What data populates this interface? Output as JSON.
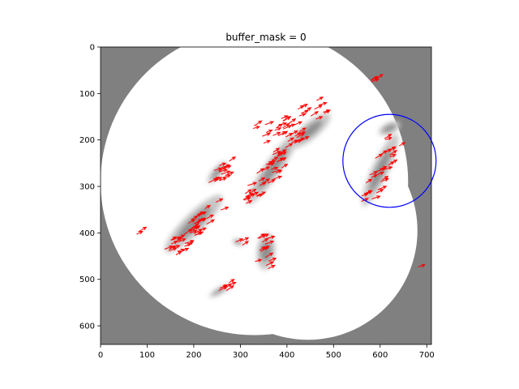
{
  "chart_data": {
    "type": "image",
    "title": "buffer_mask = 0",
    "xlabel": "",
    "ylabel": "",
    "xlim": [
      0,
      710
    ],
    "ylim": [
      640,
      0
    ],
    "x_ticks": [
      "0",
      "100",
      "200",
      "300",
      "400",
      "500",
      "600",
      "700"
    ],
    "y_ticks": [
      "0",
      "100",
      "200",
      "300",
      "400",
      "500",
      "600"
    ],
    "x_tick_values": [
      0,
      100,
      200,
      300,
      400,
      500,
      600,
      700
    ],
    "y_tick_values": [
      0,
      100,
      200,
      300,
      400,
      500,
      600
    ],
    "background_color": "#808080",
    "mask_color": "#ffffff",
    "arrow_color": "#ff0000",
    "circle_color": "#0000ff",
    "radar_domains": [
      {
        "cx": 330,
        "cy": 290,
        "r": 330
      },
      {
        "cx": 445,
        "cy": 395,
        "r": 235
      }
    ],
    "highlight_circle": {
      "cx": 620,
      "cy": 245,
      "r": 100
    },
    "echo_cells": [
      {
        "cx": 200,
        "cy": 380,
        "rx": 85,
        "ry": 22,
        "angle": -45
      },
      {
        "cx": 250,
        "cy": 270,
        "rx": 30,
        "ry": 10,
        "angle": -50
      },
      {
        "cx": 370,
        "cy": 260,
        "rx": 95,
        "ry": 18,
        "angle": -55
      },
      {
        "cx": 450,
        "cy": 180,
        "rx": 55,
        "ry": 18,
        "angle": -40
      },
      {
        "cx": 355,
        "cy": 440,
        "rx": 20,
        "ry": 40,
        "angle": 5
      },
      {
        "cx": 600,
        "cy": 265,
        "rx": 85,
        "ry": 18,
        "angle": -65
      },
      {
        "cx": 255,
        "cy": 525,
        "rx": 25,
        "ry": 7,
        "angle": -30
      },
      {
        "cx": 295,
        "cy": 420,
        "rx": 12,
        "ry": 7,
        "angle": 20
      },
      {
        "cx": 620,
        "cy": 175,
        "rx": 25,
        "ry": 12,
        "angle": -25
      }
    ],
    "motion_vector": {
      "dx": 15,
      "dy": -7
    },
    "arrow_groups": [
      {
        "cx": 200,
        "cy": 390,
        "rx": 80,
        "ry": 18,
        "angle": -45,
        "count": 40
      },
      {
        "cx": 255,
        "cy": 270,
        "rx": 35,
        "ry": 14,
        "angle": -50,
        "count": 14
      },
      {
        "cx": 370,
        "cy": 255,
        "rx": 100,
        "ry": 20,
        "angle": -55,
        "count": 45
      },
      {
        "cx": 410,
        "cy": 160,
        "rx": 75,
        "ry": 18,
        "angle": -25,
        "count": 30
      },
      {
        "cx": 350,
        "cy": 440,
        "rx": 18,
        "ry": 40,
        "angle": 5,
        "count": 14
      },
      {
        "cx": 595,
        "cy": 270,
        "rx": 75,
        "ry": 18,
        "angle": -65,
        "count": 28
      },
      {
        "cx": 255,
        "cy": 525,
        "rx": 28,
        "ry": 8,
        "angle": -30,
        "count": 7
      },
      {
        "cx": 295,
        "cy": 420,
        "rx": 12,
        "ry": 6,
        "angle": 20,
        "count": 3
      },
      {
        "cx": 590,
        "cy": 72,
        "rx": 18,
        "ry": 5,
        "angle": -15,
        "count": 4
      },
      {
        "cx": 80,
        "cy": 395,
        "rx": 14,
        "ry": 6,
        "angle": -30,
        "count": 2
      },
      {
        "cx": 325,
        "cy": 170,
        "rx": 10,
        "ry": 6,
        "angle": -30,
        "count": 2
      },
      {
        "cx": 680,
        "cy": 472,
        "rx": 3,
        "ry": 3,
        "angle": 0,
        "count": 1
      }
    ]
  }
}
